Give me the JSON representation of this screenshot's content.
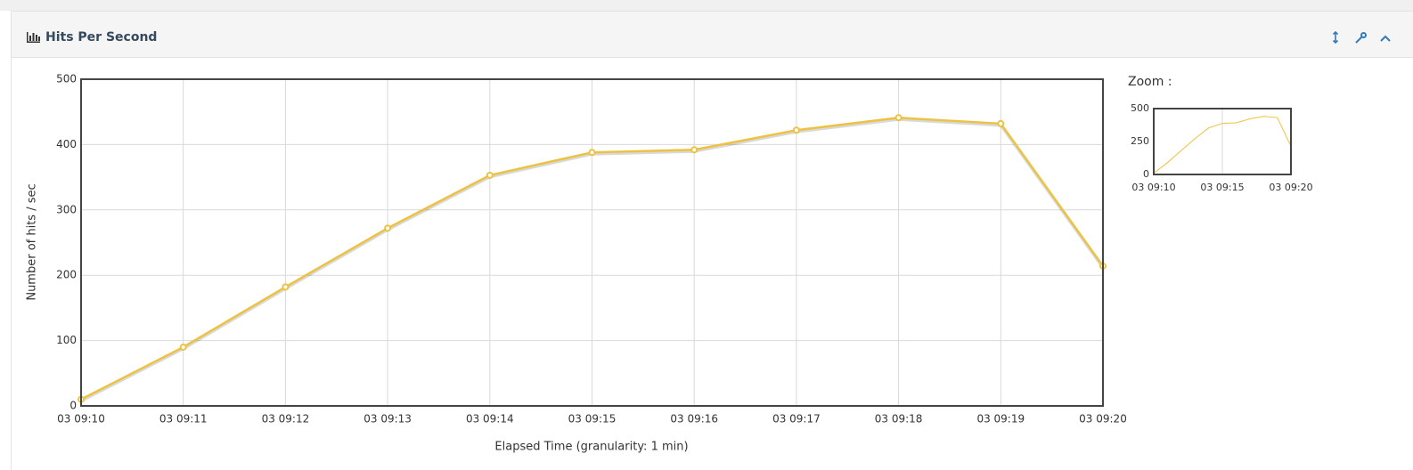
{
  "chart_data": {
    "type": "line",
    "title": "Hits Per Second",
    "categories": [
      "03 09:10",
      "03 09:11",
      "03 09:12",
      "03 09:13",
      "03 09:14",
      "03 09:15",
      "03 09:16",
      "03 09:17",
      "03 09:18",
      "03 09:19",
      "03 09:20"
    ],
    "values": [
      10,
      90,
      182,
      272,
      353,
      388,
      392,
      422,
      441,
      432,
      214
    ],
    "color": "#edc240",
    "ylim": [
      0,
      500
    ],
    "yticks": [
      0,
      100,
      200,
      300,
      400,
      500
    ],
    "grid": true,
    "x_label": "Elapsed Time (granularity: 1 min)",
    "y_label": "Number of hits / sec",
    "zoom": {
      "label": "Zoom :",
      "ylim": [
        0,
        500
      ],
      "yticks": [
        0,
        250,
        500
      ]
    }
  }
}
